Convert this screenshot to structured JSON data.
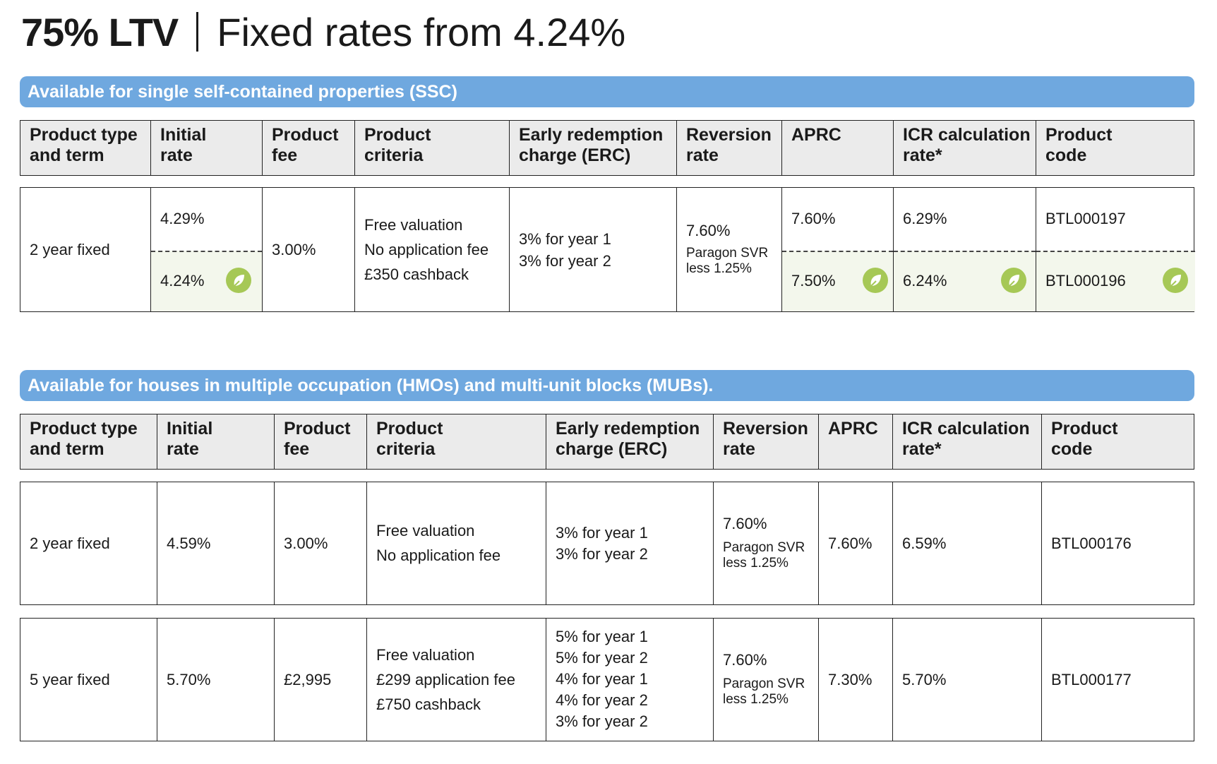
{
  "title": {
    "ltv": "75% LTV",
    "rates": "Fixed rates from 4.24%"
  },
  "headers": [
    "Product type and term",
    "Initial rate",
    "Product fee",
    "Product criteria",
    "Early redemption charge (ERC)",
    "Reversion rate",
    "APRC",
    "ICR calculation rate*",
    "Product code"
  ],
  "header_lines": [
    [
      "Product type",
      "and term"
    ],
    [
      "Initial",
      "rate"
    ],
    [
      "Product",
      "fee"
    ],
    [
      "Product",
      "criteria"
    ],
    [
      "Early redemption",
      "charge (ERC)"
    ],
    [
      "Reversion",
      "rate"
    ],
    [
      "APRC"
    ],
    [
      "ICR calculation",
      "rate*"
    ],
    [
      "Product",
      "code"
    ]
  ],
  "ssc": {
    "banner": "Available for single self-contained properties (SSC)",
    "row": {
      "term": "2 year fixed",
      "initial_rate": [
        "4.29%",
        "4.24%"
      ],
      "fee": "3.00%",
      "criteria": [
        "Free valuation",
        "No application fee",
        "£350 cashback"
      ],
      "erc": [
        "3% for year 1",
        "3% for year 2"
      ],
      "reversion": "7.60%",
      "reversion_note": [
        "Paragon SVR",
        "less 1.25%"
      ],
      "aprc": [
        "7.60%",
        "7.50%"
      ],
      "icr": [
        "6.29%",
        "6.24%"
      ],
      "code": [
        "BTL000197",
        "BTL000196"
      ]
    }
  },
  "hmo": {
    "banner": "Available for houses in multiple occupation (HMOs) and multi-unit blocks (MUBs).",
    "rows": [
      {
        "term": "2 year fixed",
        "initial_rate": "4.59%",
        "fee": "3.00%",
        "criteria": [
          "Free valuation",
          "No application fee"
        ],
        "erc": [
          "3% for year 1",
          "3% for year 2"
        ],
        "reversion": "7.60%",
        "reversion_note": [
          "Paragon SVR",
          "less 1.25%"
        ],
        "aprc": "7.60%",
        "icr": "6.59%",
        "code": "BTL000176"
      },
      {
        "term": "5 year fixed",
        "initial_rate": "5.70%",
        "fee": "£2,995",
        "criteria": [
          "Free valuation",
          "£299 application fee",
          "£750 cashback"
        ],
        "erc": [
          "5% for year 1",
          "5% for year 2",
          "4% for year 1",
          "4% for year 2",
          "3% for year 2"
        ],
        "reversion": "7.60%",
        "reversion_note": [
          "Paragon SVR",
          "less 1.25%"
        ],
        "aprc": "7.30%",
        "icr": "5.70%",
        "code": "BTL000177"
      }
    ]
  },
  "icons": {
    "green_product": "leaf-icon"
  },
  "colors": {
    "banner": "#6fa8df",
    "header_bg": "#ebebeb",
    "green_bg": "#f3f7ec",
    "leaf": "#a6c856"
  }
}
